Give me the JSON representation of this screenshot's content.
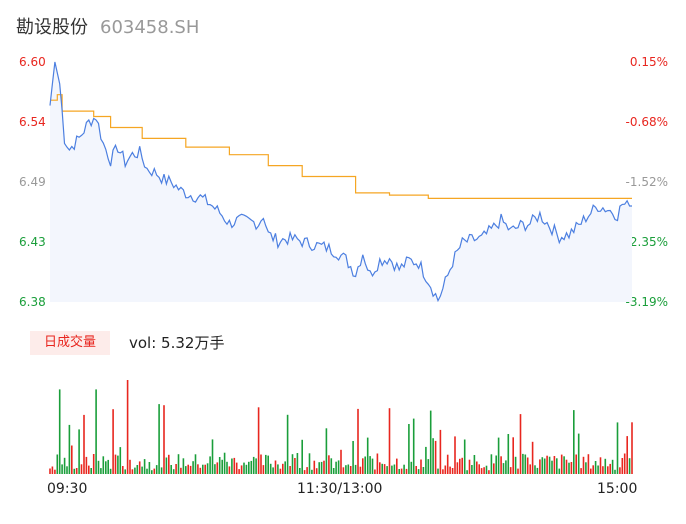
{
  "header": {
    "name": "勘设股份",
    "code": "603458.SH"
  },
  "volume": {
    "tab_label": "日成交量",
    "value_text": "vol: 5.32万手"
  },
  "colors": {
    "price_line": "#4c7fe0",
    "avg_line": "#f5a623",
    "up": "#e8261f",
    "down": "#1a9e3a",
    "flat": "#999999",
    "fill": "#f3f6fd"
  },
  "chart_data": {
    "type": "line",
    "title": "",
    "xlabel": "",
    "ylabel": "",
    "ylim": [
      6.38,
      6.6
    ],
    "y_ticks_left": [
      "6.60",
      "6.54",
      "6.49",
      "6.43",
      "6.38"
    ],
    "y_ticks_right": [
      "0.15%",
      "-0.68%",
      "-1.52%",
      "-2.35%",
      "-3.19%"
    ],
    "x_ticks": [
      "09:30",
      "11:30/13:00",
      "15:00"
    ],
    "minutes_total": 241,
    "price_knots": [
      [
        0,
        6.56
      ],
      [
        2,
        6.6
      ],
      [
        4,
        6.58
      ],
      [
        6,
        6.53
      ],
      [
        8,
        6.52
      ],
      [
        12,
        6.53
      ],
      [
        16,
        6.545
      ],
      [
        19,
        6.55
      ],
      [
        22,
        6.525
      ],
      [
        25,
        6.51
      ],
      [
        28,
        6.522
      ],
      [
        31,
        6.508
      ],
      [
        34,
        6.515
      ],
      [
        37,
        6.517
      ],
      [
        40,
        6.502
      ],
      [
        44,
        6.498
      ],
      [
        47,
        6.492
      ],
      [
        50,
        6.49
      ],
      [
        54,
        6.482
      ],
      [
        58,
        6.478
      ],
      [
        62,
        6.476
      ],
      [
        66,
        6.47
      ],
      [
        70,
        6.462
      ],
      [
        74,
        6.452
      ],
      [
        78,
        6.455
      ],
      [
        82,
        6.454
      ],
      [
        86,
        6.452
      ],
      [
        88,
        6.46
      ],
      [
        90,
        6.442
      ],
      [
        94,
        6.436
      ],
      [
        98,
        6.438
      ],
      [
        102,
        6.437
      ],
      [
        106,
        6.434
      ],
      [
        110,
        6.432
      ],
      [
        114,
        6.43
      ],
      [
        118,
        6.426
      ],
      [
        122,
        6.419
      ],
      [
        126,
        6.406
      ],
      [
        129,
        6.425
      ],
      [
        132,
        6.405
      ],
      [
        136,
        6.418
      ],
      [
        140,
        6.42
      ],
      [
        144,
        6.41
      ],
      [
        148,
        6.418
      ],
      [
        152,
        6.416
      ],
      [
        156,
        6.4
      ],
      [
        160,
        6.382
      ],
      [
        162,
        6.392
      ],
      [
        164,
        6.404
      ],
      [
        166,
        6.417
      ],
      [
        170,
        6.434
      ],
      [
        174,
        6.437
      ],
      [
        178,
        6.438
      ],
      [
        182,
        6.446
      ],
      [
        186,
        6.455
      ],
      [
        190,
        6.445
      ],
      [
        194,
        6.45
      ],
      [
        198,
        6.452
      ],
      [
        202,
        6.46
      ],
      [
        206,
        6.45
      ],
      [
        210,
        6.44
      ],
      [
        214,
        6.442
      ],
      [
        218,
        6.45
      ],
      [
        222,
        6.46
      ],
      [
        226,
        6.468
      ],
      [
        230,
        6.465
      ],
      [
        234,
        6.46
      ],
      [
        236,
        6.47
      ],
      [
        238,
        6.468
      ],
      [
        241,
        6.468
      ]
    ],
    "avg_line": [
      [
        0,
        6.565
      ],
      [
        3,
        6.57
      ],
      [
        5,
        6.555
      ],
      [
        18,
        6.55
      ],
      [
        25,
        6.54
      ],
      [
        38,
        6.53
      ],
      [
        56,
        6.522
      ],
      [
        74,
        6.515
      ],
      [
        90,
        6.505
      ],
      [
        104,
        6.495
      ],
      [
        126,
        6.48
      ],
      [
        140,
        6.478
      ],
      [
        156,
        6.475
      ],
      [
        241,
        6.468
      ]
    ],
    "volume_bars": {
      "count": 241,
      "max": 1
    }
  }
}
